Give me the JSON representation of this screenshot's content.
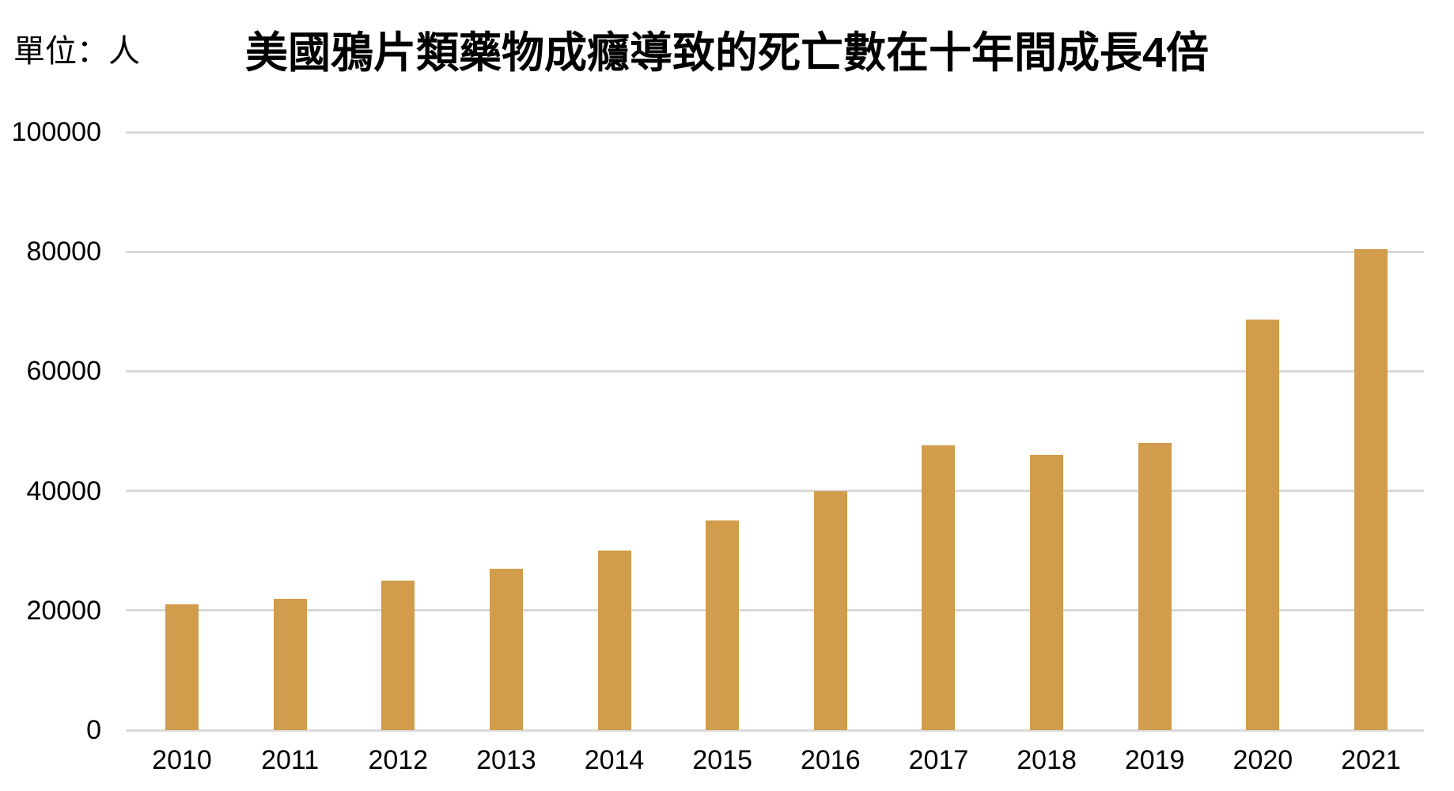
{
  "header": {
    "unit_label": "單位：人",
    "title": "美國鴉片類藥物成癮導致的死亡數在十年間成長4倍"
  },
  "chart_data": {
    "type": "bar",
    "title": "美國鴉片類藥物成癮導致的死亡數在十年間成長4倍",
    "unit_label": "單位：人",
    "categories": [
      "2010",
      "2011",
      "2012",
      "2013",
      "2014",
      "2015",
      "2016",
      "2017",
      "2018",
      "2019",
      "2020",
      "2021"
    ],
    "values": [
      21000,
      22000,
      25000,
      27000,
      30000,
      35000,
      40000,
      47600,
      46000,
      48000,
      68600,
      80400
    ],
    "xlabel": "",
    "ylabel": "",
    "ylim": [
      0,
      100000
    ],
    "yticks": [
      0,
      20000,
      40000,
      60000,
      80000,
      100000
    ],
    "grid": "horizontal",
    "legend_position": "none",
    "bar_color": "#D19C4B",
    "gridline_color": "#D9D9D9",
    "text_color": "#000000",
    "background_color": "#FFFFFF"
  }
}
